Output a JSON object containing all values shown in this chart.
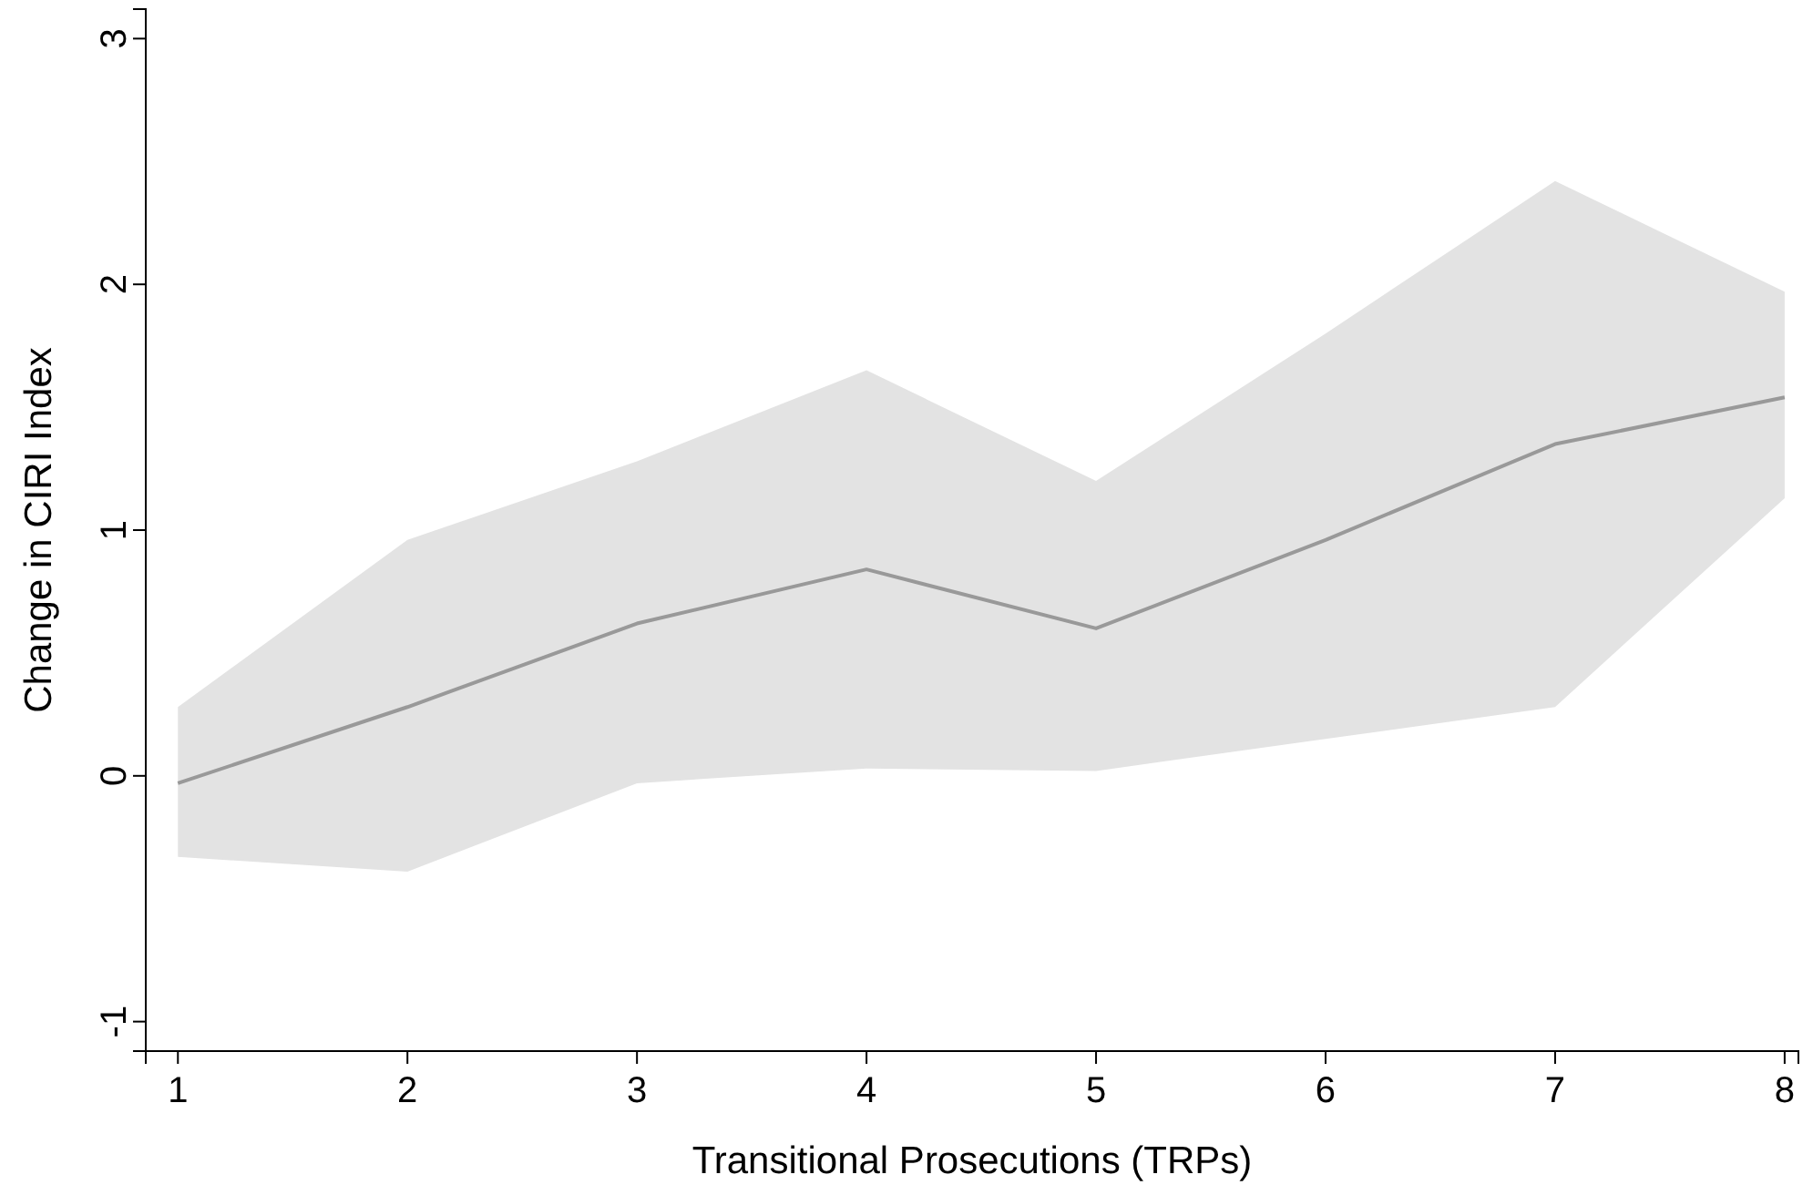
{
  "chart_data": {
    "type": "line",
    "xlabel": "Transitional Prosecutions (TRPs)",
    "ylabel": "Change in CIRI Index",
    "x": [
      1,
      2,
      3,
      4,
      5,
      6,
      7,
      8
    ],
    "series": [
      {
        "color": "#999999",
        "values": [
          -0.03,
          0.28,
          0.62,
          0.84,
          0.6,
          0.96,
          1.35,
          1.54
        ],
        "lower": [
          -0.33,
          -0.39,
          -0.03,
          0.03,
          0.02,
          0.15,
          0.28,
          1.13
        ],
        "upper": [
          0.28,
          0.96,
          1.28,
          1.65,
          1.2,
          1.8,
          2.42,
          1.97
        ]
      }
    ],
    "xlim": [
      0.86,
      8.06
    ],
    "xticks": [
      1,
      2,
      3,
      4,
      5,
      6,
      7,
      8
    ],
    "ylim": [
      -1.12,
      3.12
    ],
    "yticks": [
      -1,
      0,
      1,
      2,
      3
    ],
    "grid": false
  }
}
